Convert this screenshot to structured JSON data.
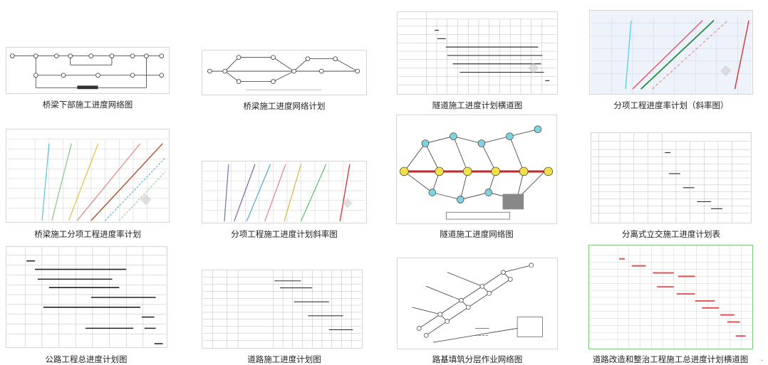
{
  "gallery": {
    "items": [
      {
        "caption": "桥梁下部施工进度网络图"
      },
      {
        "caption": "桥梁施工进度网络计划"
      },
      {
        "caption": "隧道施工进度计划横道图"
      },
      {
        "caption": "分项工程进度率计划（斜率图）"
      },
      {
        "caption": "桥梁施工分项工程进度率计划"
      },
      {
        "caption": "分项工程施工进度计划斜率图"
      },
      {
        "caption": "隧道施工进度网络图"
      },
      {
        "caption": "分离式立交施工进度计划表"
      },
      {
        "caption": "公路工程总进度计划图"
      },
      {
        "caption": "道路施工进度计划图"
      },
      {
        "caption": "路基填筑分层作业网络图"
      },
      {
        "caption": "道路改造和整治工程施工总进度计划横道图"
      }
    ],
    "edge_mark": "."
  }
}
